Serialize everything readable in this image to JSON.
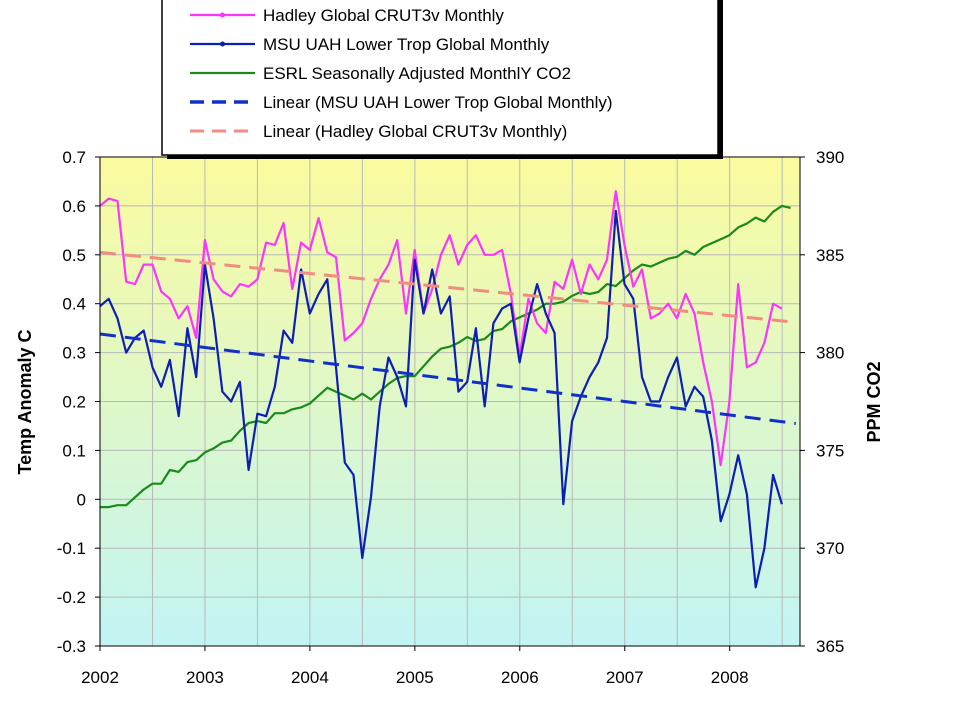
{
  "chart_data": {
    "type": "line",
    "ylabel_left": "Temp Anomaly C",
    "ylabel_right": "PPM CO2",
    "xlim": [
      2002,
      2008.67
    ],
    "ylim_left": [
      -0.3,
      0.7
    ],
    "ylim_right": [
      365,
      390
    ],
    "x_ticks": [
      "2002",
      "2003",
      "2004",
      "2005",
      "2006",
      "2007",
      "2008"
    ],
    "y_left_ticks": [
      "0.7",
      "0.6",
      "0.5",
      "0.4",
      "0.3",
      "0.2",
      "0.1",
      "0",
      "-0.1",
      "-0.2",
      "-0.3"
    ],
    "y_right_ticks": [
      "390",
      "385",
      "380",
      "375",
      "370",
      "365"
    ],
    "grid": true,
    "legend_position": "top",
    "legend": [
      "Hadley Global CRUT3v Monthly",
      "MSU UAH Lower Trop Global Monthly",
      "ESRL Seasonally Adjusted MonthlY CO2",
      "Linear (MSU UAH Lower Trop Global Monthly)",
      "Linear (Hadley Global CRUT3v Monthly)"
    ],
    "colors": {
      "hadley": "#ff33ff",
      "msu": "#0d1fb3",
      "co2": "#1a8a1a",
      "msu_trend": "#1030c8",
      "hadley_trend": "#f08c80",
      "plot_top": "#fbfb9e",
      "plot_bottom": "#c2f4f4"
    },
    "series": [
      {
        "name": "Hadley Global CRUT3v Monthly",
        "axis": "left",
        "x_start": 2002.0,
        "x_step": 0.0833,
        "values": [
          0.6,
          0.615,
          0.61,
          0.445,
          0.44,
          0.48,
          0.48,
          0.425,
          0.41,
          0.37,
          0.395,
          0.33,
          0.53,
          0.45,
          0.425,
          0.415,
          0.44,
          0.435,
          0.45,
          0.525,
          0.52,
          0.565,
          0.43,
          0.525,
          0.51,
          0.575,
          0.505,
          0.495,
          0.325,
          0.34,
          0.36,
          0.41,
          0.45,
          0.48,
          0.53,
          0.38,
          0.51,
          0.38,
          0.43,
          0.5,
          0.54,
          0.48,
          0.52,
          0.54,
          0.5,
          0.5,
          0.51,
          0.42,
          0.29,
          0.41,
          0.36,
          0.34,
          0.445,
          0.43,
          0.49,
          0.42,
          0.48,
          0.45,
          0.49,
          0.63,
          0.52,
          0.435,
          0.47,
          0.37,
          0.38,
          0.4,
          0.37,
          0.42,
          0.38,
          0.28,
          0.2,
          0.07,
          0.2,
          0.44,
          0.27,
          0.28,
          0.32,
          0.4,
          0.39
        ]
      },
      {
        "name": "MSU UAH Lower Trop Global Monthly",
        "axis": "left",
        "x_start": 2002.0,
        "x_step": 0.0833,
        "values": [
          0.395,
          0.41,
          0.37,
          0.3,
          0.33,
          0.345,
          0.27,
          0.23,
          0.285,
          0.17,
          0.35,
          0.25,
          0.48,
          0.37,
          0.22,
          0.2,
          0.24,
          0.06,
          0.175,
          0.17,
          0.23,
          0.345,
          0.32,
          0.47,
          0.38,
          0.42,
          0.45,
          0.27,
          0.075,
          0.05,
          -0.12,
          0.005,
          0.19,
          0.29,
          0.25,
          0.19,
          0.49,
          0.38,
          0.47,
          0.38,
          0.415,
          0.22,
          0.24,
          0.35,
          0.19,
          0.36,
          0.39,
          0.4,
          0.28,
          0.37,
          0.44,
          0.38,
          0.34,
          -0.01,
          0.16,
          0.21,
          0.25,
          0.28,
          0.33,
          0.59,
          0.44,
          0.41,
          0.25,
          0.2,
          0.2,
          0.25,
          0.29,
          0.19,
          0.23,
          0.21,
          0.12,
          -0.045,
          0.01,
          0.09,
          0.01,
          -0.18,
          -0.1,
          0.05,
          -0.01
        ]
      },
      {
        "name": "ESRL Seasonally Adjusted MonthlY CO2",
        "axis": "right",
        "x_start": 2002.0,
        "x_step": 0.0833,
        "values": [
          372.1,
          372.1,
          372.2,
          372.2,
          372.6,
          373.0,
          373.3,
          373.3,
          374.0,
          373.9,
          374.4,
          374.5,
          374.9,
          375.1,
          375.4,
          375.5,
          376.0,
          376.4,
          376.5,
          376.4,
          376.9,
          376.9,
          377.1,
          377.2,
          377.4,
          377.8,
          378.2,
          378.0,
          377.8,
          377.6,
          377.9,
          377.6,
          378.0,
          378.4,
          378.7,
          378.8,
          378.8,
          379.3,
          379.8,
          380.2,
          380.3,
          380.5,
          380.8,
          380.6,
          380.7,
          381.1,
          381.2,
          381.6,
          381.8,
          382.0,
          382.2,
          382.5,
          382.5,
          382.6,
          382.9,
          383.1,
          383.0,
          383.1,
          383.5,
          383.4,
          383.8,
          384.2,
          384.5,
          384.4,
          384.6,
          384.8,
          384.9,
          385.2,
          385.0,
          385.4,
          385.6,
          385.8,
          386.0,
          386.4,
          386.6,
          386.9,
          386.7,
          387.2,
          387.5,
          387.4
        ]
      },
      {
        "name": "Linear (MSU UAH Lower Trop Global Monthly)",
        "axis": "left",
        "style": "dashed",
        "x": [
          2002.0,
          2008.63
        ],
        "values": [
          0.338,
          0.155
        ]
      },
      {
        "name": "Linear (Hadley Global CRUT3v Monthly)",
        "axis": "left",
        "style": "dashed",
        "x": [
          2002.0,
          2008.63
        ],
        "values": [
          0.505,
          0.362
        ]
      }
    ]
  }
}
